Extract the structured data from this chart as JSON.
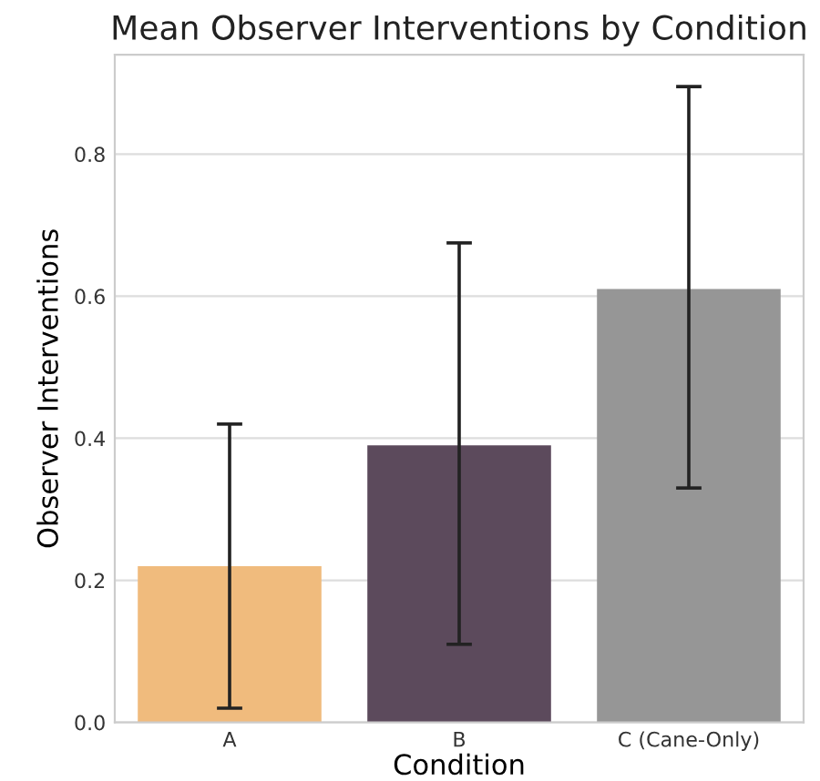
{
  "chart_data": {
    "type": "bar",
    "title": "Mean Observer Interventions by Condition",
    "xlabel": "Condition",
    "ylabel": "Observer Interventions",
    "categories": [
      "A",
      "B",
      "C (Cane-Only)"
    ],
    "values": [
      0.22,
      0.39,
      0.61
    ],
    "colors": [
      "#f0bb7d",
      "#5c4a5c",
      "#969696"
    ],
    "errors": [
      [
        0.02,
        0.42
      ],
      [
        0.11,
        0.675
      ],
      [
        0.33,
        0.895
      ]
    ],
    "ylim": [
      0,
      0.94
    ],
    "yticks": [
      {
        "value": 0,
        "label": "0.0"
      },
      0.2,
      0.4,
      0.6,
      0.8
    ],
    "grid": "y"
  }
}
